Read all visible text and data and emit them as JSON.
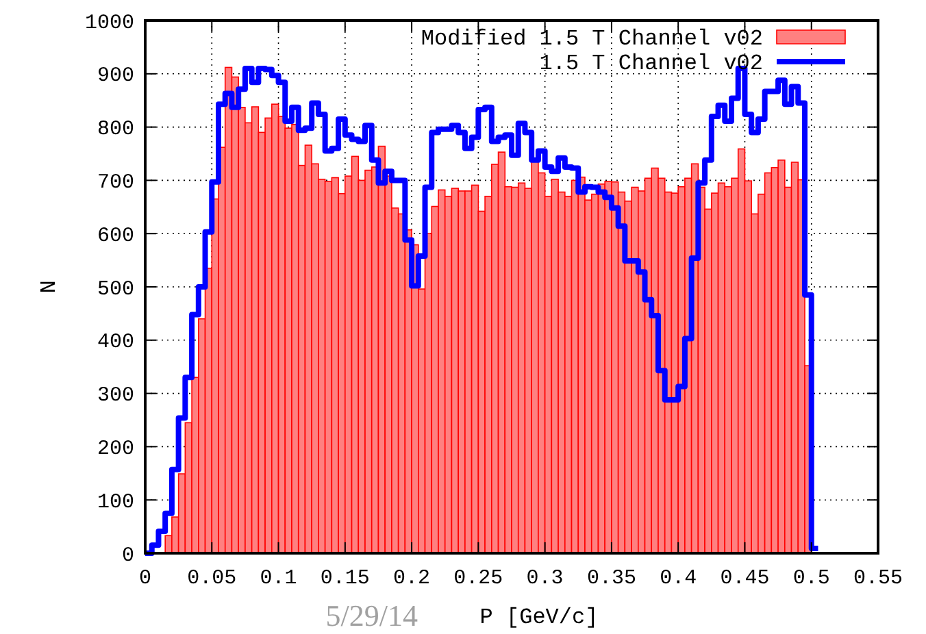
{
  "chart_data": {
    "type": "histogram",
    "xlabel": "P [GeV/c]",
    "ylabel": "N",
    "annotations": [
      "5/29/14"
    ],
    "bins": [
      0,
      0.005,
      0.01,
      0.015,
      0.02,
      0.025,
      0.03,
      0.035,
      0.04,
      0.045,
      0.05,
      0.055,
      0.06,
      0.065,
      0.07,
      0.075,
      0.08,
      0.085,
      0.09,
      0.095,
      0.1,
      0.105,
      0.11,
      0.115,
      0.12,
      0.125,
      0.13,
      0.135,
      0.14,
      0.145,
      0.15,
      0.155,
      0.16,
      0.165,
      0.17,
      0.175,
      0.18,
      0.185,
      0.19,
      0.195,
      0.2,
      0.205,
      0.21,
      0.215,
      0.22,
      0.225,
      0.23,
      0.235,
      0.24,
      0.245,
      0.25,
      0.255,
      0.26,
      0.265,
      0.27,
      0.275,
      0.28,
      0.285,
      0.29,
      0.295,
      0.3,
      0.305,
      0.31,
      0.315,
      0.32,
      0.325,
      0.33,
      0.335,
      0.34,
      0.345,
      0.35,
      0.355,
      0.36,
      0.365,
      0.37,
      0.375,
      0.38,
      0.385,
      0.39,
      0.395,
      0.4,
      0.405,
      0.41,
      0.415,
      0.42,
      0.425,
      0.43,
      0.435,
      0.44,
      0.445,
      0.45,
      0.455,
      0.46,
      0.465,
      0.47,
      0.475,
      0.48,
      0.485,
      0.49,
      0.495,
      0.5,
      0.505
    ],
    "series": [
      {
        "name": "Modified 1.5 T Channel v02",
        "type": "histogram",
        "color": "#ff8080",
        "values": [
          0,
          0,
          0,
          33,
          68,
          149,
          245,
          330,
          440,
          535,
          665,
          762,
          912,
          894,
          837,
          808,
          838,
          790,
          817,
          843,
          820,
          798,
          805,
          728,
          766,
          731,
          702,
          698,
          705,
          675,
          708,
          745,
          700,
          719,
          725,
          764,
          708,
          648,
          637,
          607,
          579,
          496,
          600,
          651,
          682,
          670,
          685,
          680,
          680,
          691,
          642,
          670,
          730,
          753,
          688,
          687,
          695,
          685,
          736,
          714,
          670,
          702,
          678,
          670,
          700,
          706,
          663,
          674,
          693,
          698,
          697,
          678,
          661,
          687,
          680,
          704,
          723,
          704,
          678,
          676,
          688,
          704,
          731,
          687,
          646,
          676,
          695,
          688,
          704,
          759,
          699,
          637,
          674,
          714,
          724,
          738,
          687,
          734,
          701,
          352,
          0
        ]
      },
      {
        "name": "1.5 T Channel v02",
        "type": "step",
        "color": "#0000ff",
        "x": [
          0,
          0.005,
          0.01,
          0.015,
          0.02,
          0.025,
          0.03,
          0.035,
          0.04,
          0.045,
          0.05,
          0.055,
          0.06,
          0.065,
          0.07,
          0.075,
          0.08,
          0.085,
          0.09,
          0.095,
          0.1,
          0.105,
          0.11,
          0.115,
          0.12,
          0.125,
          0.13,
          0.135,
          0.14,
          0.145,
          0.15,
          0.155,
          0.16,
          0.165,
          0.17,
          0.175,
          0.18,
          0.185,
          0.19,
          0.195,
          0.2,
          0.205,
          0.21,
          0.215,
          0.22,
          0.225,
          0.23,
          0.235,
          0.24,
          0.245,
          0.25,
          0.255,
          0.26,
          0.265,
          0.27,
          0.275,
          0.28,
          0.285,
          0.29,
          0.295,
          0.3,
          0.305,
          0.31,
          0.315,
          0.32,
          0.325,
          0.33,
          0.335,
          0.34,
          0.345,
          0.35,
          0.355,
          0.36,
          0.365,
          0.37,
          0.375,
          0.38,
          0.385,
          0.39,
          0.395,
          0.4,
          0.405,
          0.41,
          0.415,
          0.42,
          0.425,
          0.43,
          0.435,
          0.44,
          0.445,
          0.45,
          0.455,
          0.46,
          0.465,
          0.47,
          0.475,
          0.48,
          0.485,
          0.49,
          0.495,
          0.5,
          0.505
        ],
        "values": [
          0,
          15,
          41,
          75,
          157,
          254,
          330,
          448,
          500,
          603,
          697,
          843,
          863,
          837,
          871,
          910,
          884,
          910,
          908,
          897,
          884,
          811,
          837,
          794,
          798,
          845,
          824,
          755,
          760,
          815,
          785,
          777,
          773,
          803,
          738,
          695,
          717,
          700,
          700,
          588,
          502,
          558,
          687,
          790,
          796,
          796,
          803,
          790,
          760,
          781,
          833,
          837,
          773,
          781,
          785,
          747,
          807,
          790,
          738,
          755,
          725,
          717,
          742,
          725,
          723,
          678,
          688,
          687,
          678,
          668,
          648,
          614,
          549,
          549,
          528,
          476,
          446,
          343,
          288,
          288,
          313,
          403,
          554,
          695,
          738,
          820,
          841,
          811,
          854,
          910,
          824,
          790,
          815,
          867,
          867,
          888,
          843,
          876,
          845,
          485,
          9,
          9
        ]
      }
    ],
    "xlim": [
      0,
      0.55
    ],
    "xticks": [
      0,
      0.05,
      0.1,
      0.15,
      0.2,
      0.25,
      0.3,
      0.35,
      0.4,
      0.45,
      0.5,
      0.55
    ],
    "ylim": [
      0,
      1000
    ],
    "yticks": [
      0,
      100,
      200,
      300,
      400,
      500,
      600,
      700,
      800,
      900,
      1000
    ],
    "grid": true,
    "legend": "top right"
  }
}
